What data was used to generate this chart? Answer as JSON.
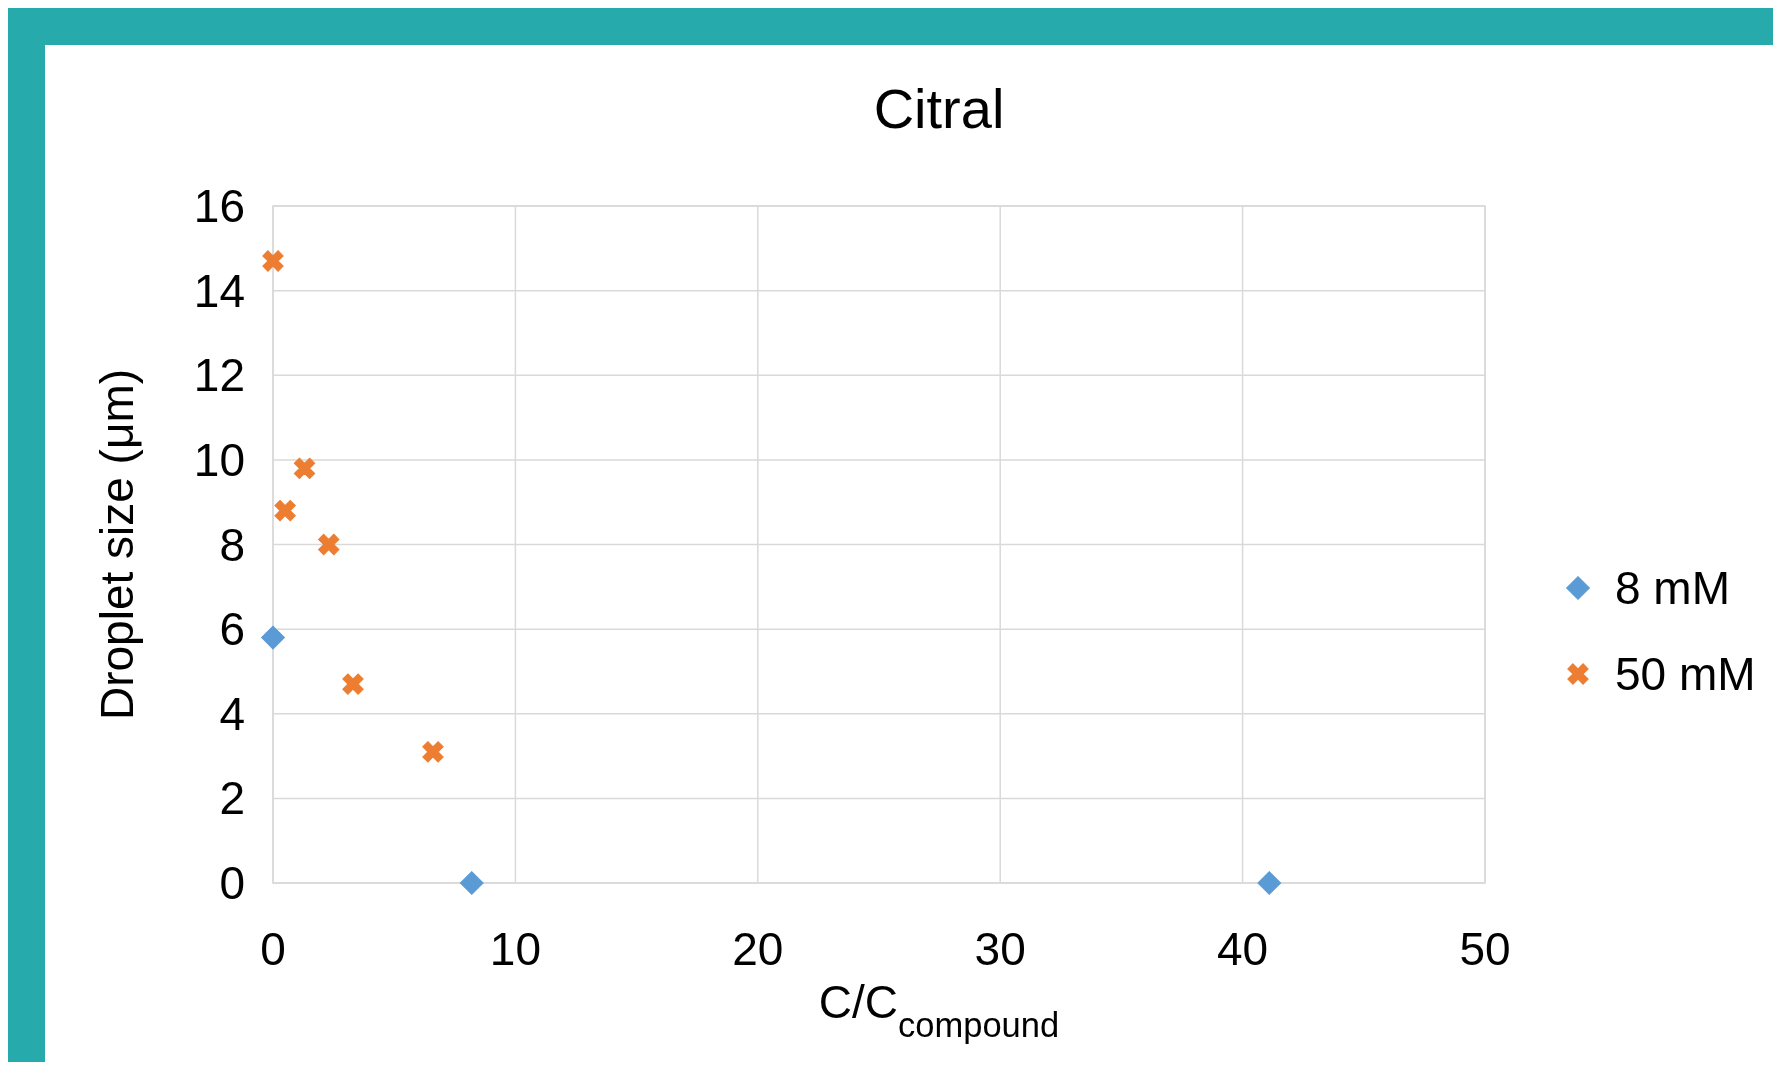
{
  "chart_data": {
    "type": "scatter",
    "title": "Citral",
    "xlabel": "C/C$_{compound}$",
    "ylabel": "Droplet size (μm)",
    "xlim": [
      0,
      50
    ],
    "xticks": [
      0,
      10,
      20,
      30,
      40,
      50
    ],
    "ylim": [
      0,
      16
    ],
    "yticks": [
      0,
      2,
      4,
      6,
      8,
      10,
      12,
      14,
      16
    ],
    "grid": true,
    "legend": "right",
    "series": [
      {
        "name": "8 mM",
        "color": "#5b9bd5",
        "marker": "diamond",
        "x": [
          0,
          8.2,
          41.1
        ],
        "values": [
          5.8,
          0,
          0
        ]
      },
      {
        "name": "50 mM",
        "color": "#ed7d31",
        "marker": "cross",
        "x": [
          0,
          0.5,
          1.3,
          2.3,
          3.3,
          6.6
        ],
        "values": [
          14.7,
          8.8,
          9.8,
          8.0,
          4.7,
          3.1
        ]
      }
    ]
  }
}
